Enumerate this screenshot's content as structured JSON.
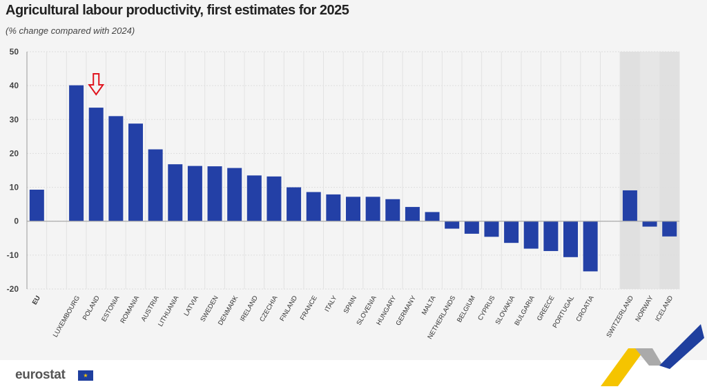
{
  "title": "Agricultural labour productivity, first estimates for 2025",
  "subtitle": "(% change compared with 2024)",
  "logo": "eurostat",
  "chart_data": {
    "type": "bar",
    "title": "Agricultural labour productivity, first estimates for 2025",
    "subtitle": "(% change compared with 2024)",
    "categories": [
      "EU",
      "",
      "LUXEMBOURG",
      "POLAND",
      "ESTONIA",
      "ROMANIA",
      "AUSTRIA",
      "LITHUANIA",
      "LATVIA",
      "SWEDEN",
      "DENMARK",
      "IRELAND",
      "CZECHIA",
      "FINLAND",
      "FRANCE",
      "ITALY",
      "SPAIN",
      "SLOVENIA",
      "HUNGARY",
      "GERMANY",
      "MALTA",
      "NETHERLANDS",
      "BELGIUM",
      "CYPRUS",
      "SLOVAKIA",
      "BULGARIA",
      "GREECE",
      "PORTUGAL",
      "CROATIA",
      "",
      "SWITZERLAND",
      "NORWAY",
      "ICELAND"
    ],
    "values": [
      9.3,
      null,
      40.1,
      33.5,
      31.0,
      28.8,
      21.2,
      16.8,
      16.3,
      16.2,
      15.7,
      13.5,
      13.2,
      10.0,
      8.6,
      7.9,
      7.2,
      7.2,
      6.5,
      4.2,
      2.7,
      -2.2,
      -3.7,
      -4.6,
      -6.4,
      -8.1,
      -8.8,
      -10.6,
      -14.8,
      null,
      9.1,
      -1.6,
      -4.5
    ],
    "ylim": [
      -20,
      50
    ],
    "yticks": [
      50,
      40,
      30,
      20,
      10,
      0,
      -10,
      -20
    ],
    "grid": true,
    "highlighted_category": "POLAND",
    "shaded_categories": [
      "SWITZERLAND",
      "NORWAY",
      "ICELAND"
    ],
    "bar_color": "#2340a6",
    "annotation_color": "#e0141e",
    "xlabel": "",
    "ylabel": ""
  }
}
